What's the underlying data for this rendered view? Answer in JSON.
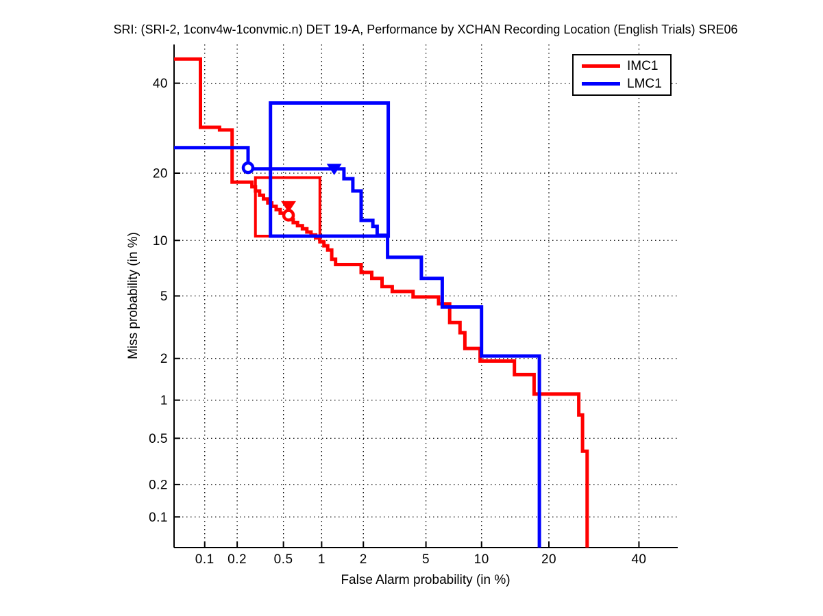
{
  "chart_data": {
    "type": "line",
    "subtype": "DET-curve",
    "title": "SRI: (SRI-2, 1conv4w-1convmic.n) DET 19-A,  Performance by XCHAN Recording Location (English Trials) SRE06",
    "xlabel": "False Alarm probability (in %)",
    "ylabel": "Miss probability (in %)",
    "axis_scale": "probit",
    "grid": "dotted",
    "xlim": [
      0.05,
      50
    ],
    "ylim": [
      0.05,
      50
    ],
    "x_ticks": [
      0.1,
      0.2,
      0.5,
      1,
      2,
      5,
      10,
      20,
      40
    ],
    "x_tick_labels": [
      "0.1",
      "0.2",
      "0.5",
      "1",
      "2",
      "5",
      "10",
      "20",
      "40"
    ],
    "y_ticks": [
      0.1,
      0.2,
      0.5,
      1,
      2,
      5,
      10,
      20,
      40
    ],
    "y_tick_labels": [
      "0.1",
      "0.2",
      "0.5",
      "1",
      "2",
      "5",
      "10",
      "20",
      "40"
    ],
    "legend": {
      "position": "northeast",
      "entries": [
        {
          "label": "IMC1",
          "color": "#ff0000"
        },
        {
          "label": "LMC1",
          "color": "#0000ff"
        }
      ]
    },
    "series": [
      {
        "name": "IMC1",
        "color": "#ff0000",
        "line_width": 5,
        "points": [
          [
            0.05,
            46.2
          ],
          [
            0.091,
            46.2
          ],
          [
            0.091,
            29.4
          ],
          [
            0.138,
            29.4
          ],
          [
            0.138,
            28.8
          ],
          [
            0.18,
            28.8
          ],
          [
            0.18,
            18.4
          ],
          [
            0.27,
            18.4
          ],
          [
            0.27,
            17.6
          ],
          [
            0.29,
            17.6
          ],
          [
            0.29,
            16.9
          ],
          [
            0.315,
            16.9
          ],
          [
            0.315,
            16.2
          ],
          [
            0.34,
            16.2
          ],
          [
            0.34,
            15.6
          ],
          [
            0.37,
            15.6
          ],
          [
            0.37,
            15.0
          ],
          [
            0.4,
            15.0
          ],
          [
            0.4,
            14.5
          ],
          [
            0.435,
            14.5
          ],
          [
            0.435,
            14.0
          ],
          [
            0.47,
            14.0
          ],
          [
            0.47,
            13.5
          ],
          [
            0.51,
            13.5
          ],
          [
            0.51,
            13.0
          ],
          [
            0.555,
            13.0
          ],
          [
            0.555,
            12.6
          ],
          [
            0.6,
            12.6
          ],
          [
            0.6,
            12.2
          ],
          [
            0.65,
            12.2
          ],
          [
            0.65,
            11.8
          ],
          [
            0.71,
            11.8
          ],
          [
            0.71,
            11.4
          ],
          [
            0.77,
            11.4
          ],
          [
            0.77,
            11.0
          ],
          [
            0.83,
            11.0
          ],
          [
            0.83,
            10.65
          ],
          [
            0.9,
            10.65
          ],
          [
            0.9,
            10.3
          ],
          [
            0.97,
            10.3
          ],
          [
            0.97,
            9.85
          ],
          [
            1.04,
            9.85
          ],
          [
            1.04,
            9.4
          ],
          [
            1.11,
            9.4
          ],
          [
            1.11,
            8.95
          ],
          [
            1.19,
            8.95
          ],
          [
            1.19,
            8.0
          ],
          [
            1.27,
            8.0
          ],
          [
            1.27,
            7.5
          ],
          [
            1.93,
            7.5
          ],
          [
            1.93,
            6.8
          ],
          [
            2.28,
            6.8
          ],
          [
            2.28,
            6.3
          ],
          [
            2.67,
            6.3
          ],
          [
            2.67,
            5.66
          ],
          [
            3.11,
            5.66
          ],
          [
            3.11,
            5.31
          ],
          [
            4.19,
            5.31
          ],
          [
            4.19,
            4.93
          ],
          [
            5.91,
            4.93
          ],
          [
            5.91,
            4.49
          ],
          [
            6.81,
            4.49
          ],
          [
            6.81,
            3.45
          ],
          [
            7.75,
            3.45
          ],
          [
            7.75,
            2.97
          ],
          [
            8.22,
            2.97
          ],
          [
            8.22,
            2.34
          ],
          [
            9.83,
            2.34
          ],
          [
            9.83,
            1.92
          ],
          [
            14.3,
            1.92
          ],
          [
            14.3,
            1.54
          ],
          [
            17.4,
            1.54
          ],
          [
            17.4,
            1.11
          ],
          [
            25.9,
            1.11
          ],
          [
            25.9,
            0.77
          ],
          [
            26.7,
            0.77
          ],
          [
            26.7,
            0.39
          ],
          [
            27.7,
            0.39
          ],
          [
            27.7,
            0.05
          ]
        ],
        "box": {
          "fa": [
            0.29,
            0.97
          ],
          "miss": [
            10.5,
            19.2
          ],
          "line_width": 4
        },
        "markers": [
          {
            "shape": "triangle-down",
            "fa": 0.55,
            "miss": 14.6
          },
          {
            "shape": "circle",
            "fa": 0.55,
            "miss": 13.2
          }
        ]
      },
      {
        "name": "LMC1",
        "color": "#0000ff",
        "line_width": 5,
        "points": [
          [
            0.05,
            25.0
          ],
          [
            0.25,
            25.0
          ],
          [
            0.25,
            20.8
          ],
          [
            1.46,
            20.8
          ],
          [
            1.46,
            19.0
          ],
          [
            1.69,
            19.0
          ],
          [
            1.69,
            16.9
          ],
          [
            1.93,
            16.9
          ],
          [
            1.93,
            12.5
          ],
          [
            2.32,
            12.5
          ],
          [
            2.32,
            11.7
          ],
          [
            2.48,
            11.7
          ],
          [
            2.48,
            10.6
          ],
          [
            2.9,
            10.6
          ],
          [
            2.9,
            8.2
          ],
          [
            4.7,
            8.2
          ],
          [
            4.7,
            6.3
          ],
          [
            6.2,
            6.3
          ],
          [
            6.2,
            4.3
          ],
          [
            10.0,
            4.3
          ],
          [
            10.0,
            2.08
          ],
          [
            18.3,
            2.08
          ],
          [
            18.3,
            0.05
          ]
        ],
        "box": {
          "fa": [
            0.39,
            2.93
          ],
          "miss": [
            10.5,
            35.1
          ],
          "line_width": 5
        },
        "markers": [
          {
            "shape": "circle",
            "fa": 0.25,
            "miss": 21.0
          },
          {
            "shape": "triangle-down",
            "fa": 1.24,
            "miss": 20.9
          }
        ]
      }
    ]
  }
}
